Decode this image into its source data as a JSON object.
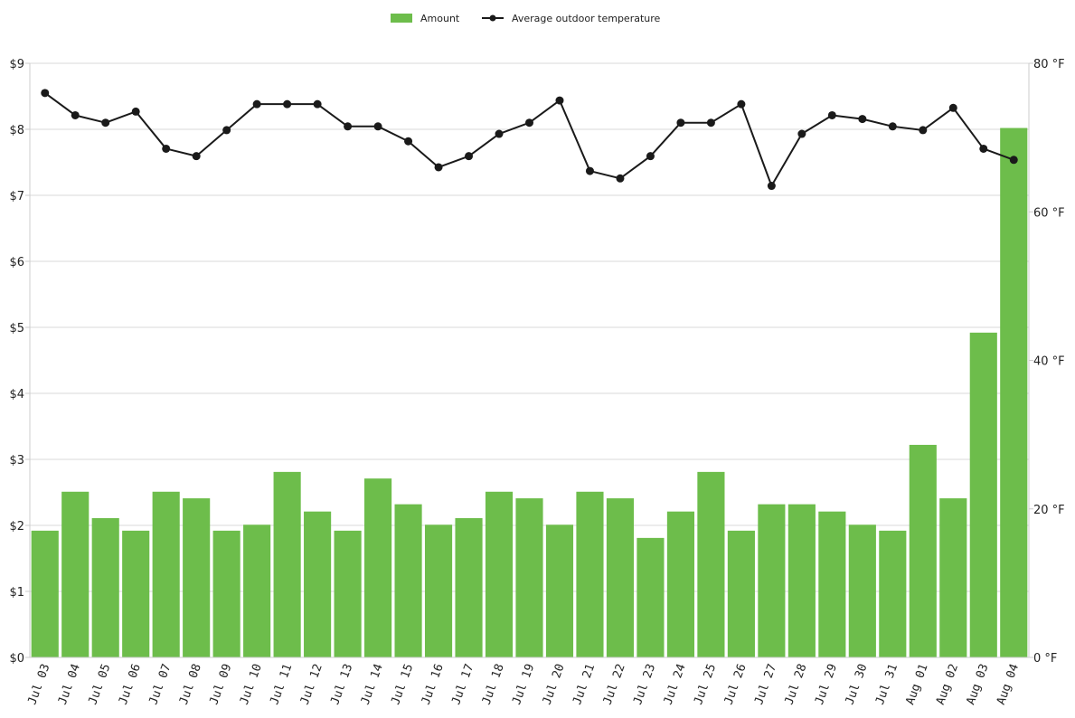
{
  "chart_data": {
    "type": "bar",
    "legend": {
      "placement": "top-center"
    },
    "grid": true,
    "categories": [
      "Jul 03",
      "Jul 04",
      "Jul 05",
      "Jul 06",
      "Jul 07",
      "Jul 08",
      "Jul 09",
      "Jul 10",
      "Jul 11",
      "Jul 12",
      "Jul 13",
      "Jul 14",
      "Jul 15",
      "Jul 16",
      "Jul 17",
      "Jul 18",
      "Jul 19",
      "Jul 20",
      "Jul 21",
      "Jul 22",
      "Jul 23",
      "Jul 24",
      "Jul 25",
      "Jul 26",
      "Jul 27",
      "Jul 28",
      "Jul 29",
      "Jul 30",
      "Jul 31",
      "Aug 01",
      "Aug 02",
      "Aug 03",
      "Aug 04"
    ],
    "series": [
      {
        "name": "Amount",
        "type": "bar",
        "axis": "left",
        "color": "#6dbd4b",
        "values": [
          1.92,
          2.51,
          2.11,
          1.92,
          2.51,
          2.41,
          1.92,
          2.01,
          2.81,
          2.21,
          1.92,
          2.71,
          2.32,
          2.01,
          2.11,
          2.51,
          2.41,
          2.01,
          2.51,
          2.41,
          1.81,
          2.21,
          2.81,
          1.92,
          2.32,
          2.32,
          2.21,
          2.01,
          1.92,
          3.22,
          2.41,
          4.92,
          8.02
        ]
      },
      {
        "name": "Average outdoor temperature",
        "type": "line",
        "axis": "right",
        "color": "#1a1a1a",
        "values": [
          76,
          73,
          72,
          73.5,
          68.5,
          67.5,
          71,
          74.5,
          74.5,
          74.5,
          71.5,
          71.5,
          69.5,
          66,
          67.5,
          70.5,
          72,
          75,
          65.5,
          64.5,
          67.5,
          72,
          72,
          74.5,
          63.5,
          70.5,
          73,
          72.5,
          71.5,
          71,
          74,
          68.5,
          67
        ]
      }
    ],
    "y_left": {
      "min": 0,
      "max": 9,
      "ticks": [
        "$0",
        "$1",
        "$2",
        "$3",
        "$4",
        "$5",
        "$6",
        "$7",
        "$8",
        "$9"
      ]
    },
    "y_right": {
      "min": 0,
      "max": 80,
      "ticks": [
        "0 °F",
        "20 °F",
        "40 °F",
        "60 °F",
        "80 °F"
      ]
    }
  }
}
